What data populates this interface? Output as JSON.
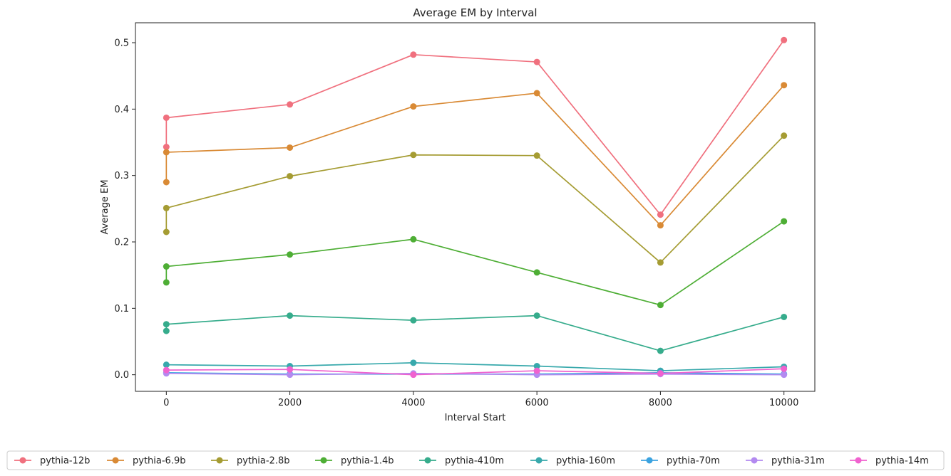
{
  "chart_data": {
    "type": "line",
    "title": "Average EM by Interval",
    "xlabel": "Interval Start",
    "ylabel": "Average EM",
    "xlim": [
      -500,
      10500
    ],
    "ylim": [
      -0.025,
      0.53
    ],
    "xticks": [
      0,
      2000,
      4000,
      6000,
      8000,
      10000
    ],
    "xtick_labels": [
      "0",
      "2000",
      "4000",
      "6000",
      "8000",
      "10000"
    ],
    "yticks": [
      0.0,
      0.1,
      0.2,
      0.3,
      0.4,
      0.5
    ],
    "ytick_labels": [
      "0.0",
      "0.1",
      "0.2",
      "0.3",
      "0.4",
      "0.5"
    ],
    "grid": false,
    "legend_position": "bottom",
    "series": [
      {
        "name": "pythia-12b",
        "color": "#f0707e",
        "points": [
          [
            0,
            0.343
          ],
          [
            0,
            0.387
          ],
          [
            2000,
            0.407
          ],
          [
            4000,
            0.482
          ],
          [
            6000,
            0.471
          ],
          [
            8000,
            0.241
          ],
          [
            10000,
            0.504
          ]
        ]
      },
      {
        "name": "pythia-6.9b",
        "color": "#d98a35",
        "points": [
          [
            0,
            0.29
          ],
          [
            0,
            0.335
          ],
          [
            2000,
            0.342
          ],
          [
            4000,
            0.404
          ],
          [
            6000,
            0.424
          ],
          [
            8000,
            0.225
          ],
          [
            10000,
            0.436
          ]
        ]
      },
      {
        "name": "pythia-2.8b",
        "color": "#a59c33",
        "points": [
          [
            0,
            0.215
          ],
          [
            0,
            0.251
          ],
          [
            2000,
            0.299
          ],
          [
            4000,
            0.331
          ],
          [
            6000,
            0.33
          ],
          [
            8000,
            0.169
          ],
          [
            10000,
            0.36
          ]
        ]
      },
      {
        "name": "pythia-1.4b",
        "color": "#4eae35",
        "points": [
          [
            0,
            0.139
          ],
          [
            0,
            0.163
          ],
          [
            2000,
            0.181
          ],
          [
            4000,
            0.204
          ],
          [
            6000,
            0.154
          ],
          [
            8000,
            0.105
          ],
          [
            10000,
            0.231
          ]
        ]
      },
      {
        "name": "pythia-410m",
        "color": "#36ac8c",
        "points": [
          [
            0,
            0.066
          ],
          [
            0,
            0.076
          ],
          [
            2000,
            0.089
          ],
          [
            4000,
            0.082
          ],
          [
            6000,
            0.089
          ],
          [
            8000,
            0.036
          ],
          [
            10000,
            0.087
          ]
        ]
      },
      {
        "name": "pythia-160m",
        "color": "#38a9ac",
        "points": [
          [
            0,
            0.015
          ],
          [
            2000,
            0.013
          ],
          [
            4000,
            0.018
          ],
          [
            6000,
            0.013
          ],
          [
            8000,
            0.006
          ],
          [
            10000,
            0.012
          ]
        ]
      },
      {
        "name": "pythia-70m",
        "color": "#3ba3e0",
        "points": [
          [
            0,
            0.003
          ],
          [
            2000,
            0.001
          ],
          [
            4000,
            0.001
          ],
          [
            6000,
            0.001
          ],
          [
            8000,
            0.003
          ],
          [
            10000,
            0.001
          ]
        ]
      },
      {
        "name": "pythia-31m",
        "color": "#b38af0",
        "points": [
          [
            0,
            0.002
          ],
          [
            2000,
            0.0
          ],
          [
            4000,
            0.002
          ],
          [
            6000,
            0.0
          ],
          [
            8000,
            0.001
          ],
          [
            10000,
            0.0
          ]
        ]
      },
      {
        "name": "pythia-14m",
        "color": "#f062cf",
        "points": [
          [
            0,
            0.007
          ],
          [
            2000,
            0.008
          ],
          [
            4000,
            0.0
          ],
          [
            6000,
            0.006
          ],
          [
            8000,
            0.002
          ],
          [
            10000,
            0.009
          ]
        ]
      }
    ]
  }
}
